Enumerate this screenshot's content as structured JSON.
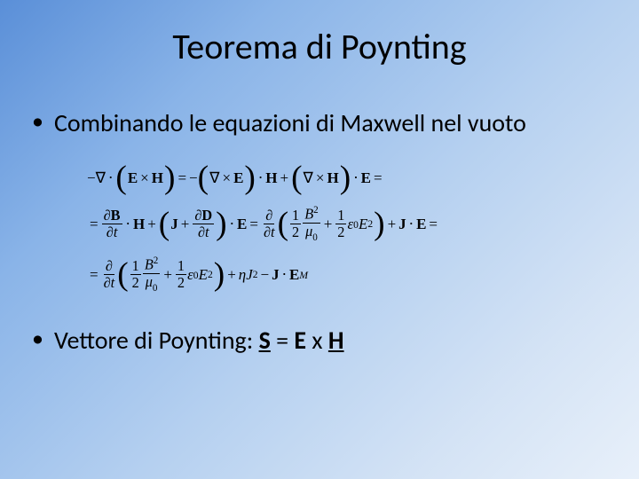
{
  "background": {
    "gradient_stops": [
      "#5a8fd8",
      "#8ab4e8",
      "#b5d0f0",
      "#d4e3f5",
      "#e8f0fa"
    ],
    "angle_deg": 135
  },
  "title": {
    "text": "Teorema di Poynting",
    "fontsize": 40,
    "color": "#000000"
  },
  "bullet1": {
    "marker": "•",
    "text": "Combinando le equazioni di Maxwell nel vuoto",
    "fontsize": 28
  },
  "equations": {
    "font_family": "Cambria Math",
    "fontsize": 17,
    "line1": {
      "minus": "−",
      "nabla": "∇",
      "dot": "⋅",
      "E": "E",
      "cross": "×",
      "H": "H",
      "eq": "=",
      "nabla2": "∇",
      "cross2": "×",
      "E2": "E",
      "dot2": "⋅",
      "H2": "H",
      "plus": "+",
      "nabla3": "∇",
      "cross3": "×",
      "H3": "H",
      "dot3": "⋅",
      "E3": "E",
      "eq_trail": "="
    },
    "line2": {
      "eq": "=",
      "dB": "∂",
      "B": "B",
      "dt": "∂",
      "t": "t",
      "dot": "⋅",
      "H": "H",
      "plus": "+",
      "J": "J",
      "plus2": "+",
      "dD": "∂",
      "D": "D",
      "dt2": "∂",
      "t2": "t",
      "dot2": "⋅",
      "E": "E",
      "eq2": "=",
      "ddt": "∂",
      "ddt_t": "∂",
      "t3": "t",
      "half": "1",
      "two": "2",
      "B2": "B",
      "sq": "2",
      "mu0": "μ",
      "zero": "0",
      "half2": "1",
      "two2": "2",
      "eps": "ε",
      "zero2": "0",
      "E2": "E",
      "sq2": "2",
      "plus3": "+",
      "J2": "J",
      "dot3": "⋅",
      "E3": "E",
      "eq_trail": "="
    },
    "line3": {
      "eq": "=",
      "ddt": "∂",
      "ddt_t": "∂",
      "t": "t",
      "half": "1",
      "two": "2",
      "B": "B",
      "sq": "2",
      "mu0": "μ",
      "zero": "0",
      "plus": "+",
      "half2": "1",
      "two2": "2",
      "eps": "ε",
      "zero2": "0",
      "E": "E",
      "sq2": "2",
      "plus2": "+",
      "eta": "η",
      "J": "J",
      "sq3": "2",
      "minus": "−",
      "Jb": "J",
      "dot": "⋅",
      "Eb": "E",
      "M": "M"
    }
  },
  "bullet2": {
    "marker": "•",
    "pre": "Vettore di Poynting: ",
    "S": "S",
    "mid": " = ",
    "E": "E",
    "x": " x ",
    "H": "H",
    "underline_S": true,
    "underline_H": true,
    "fontsize": 28
  }
}
